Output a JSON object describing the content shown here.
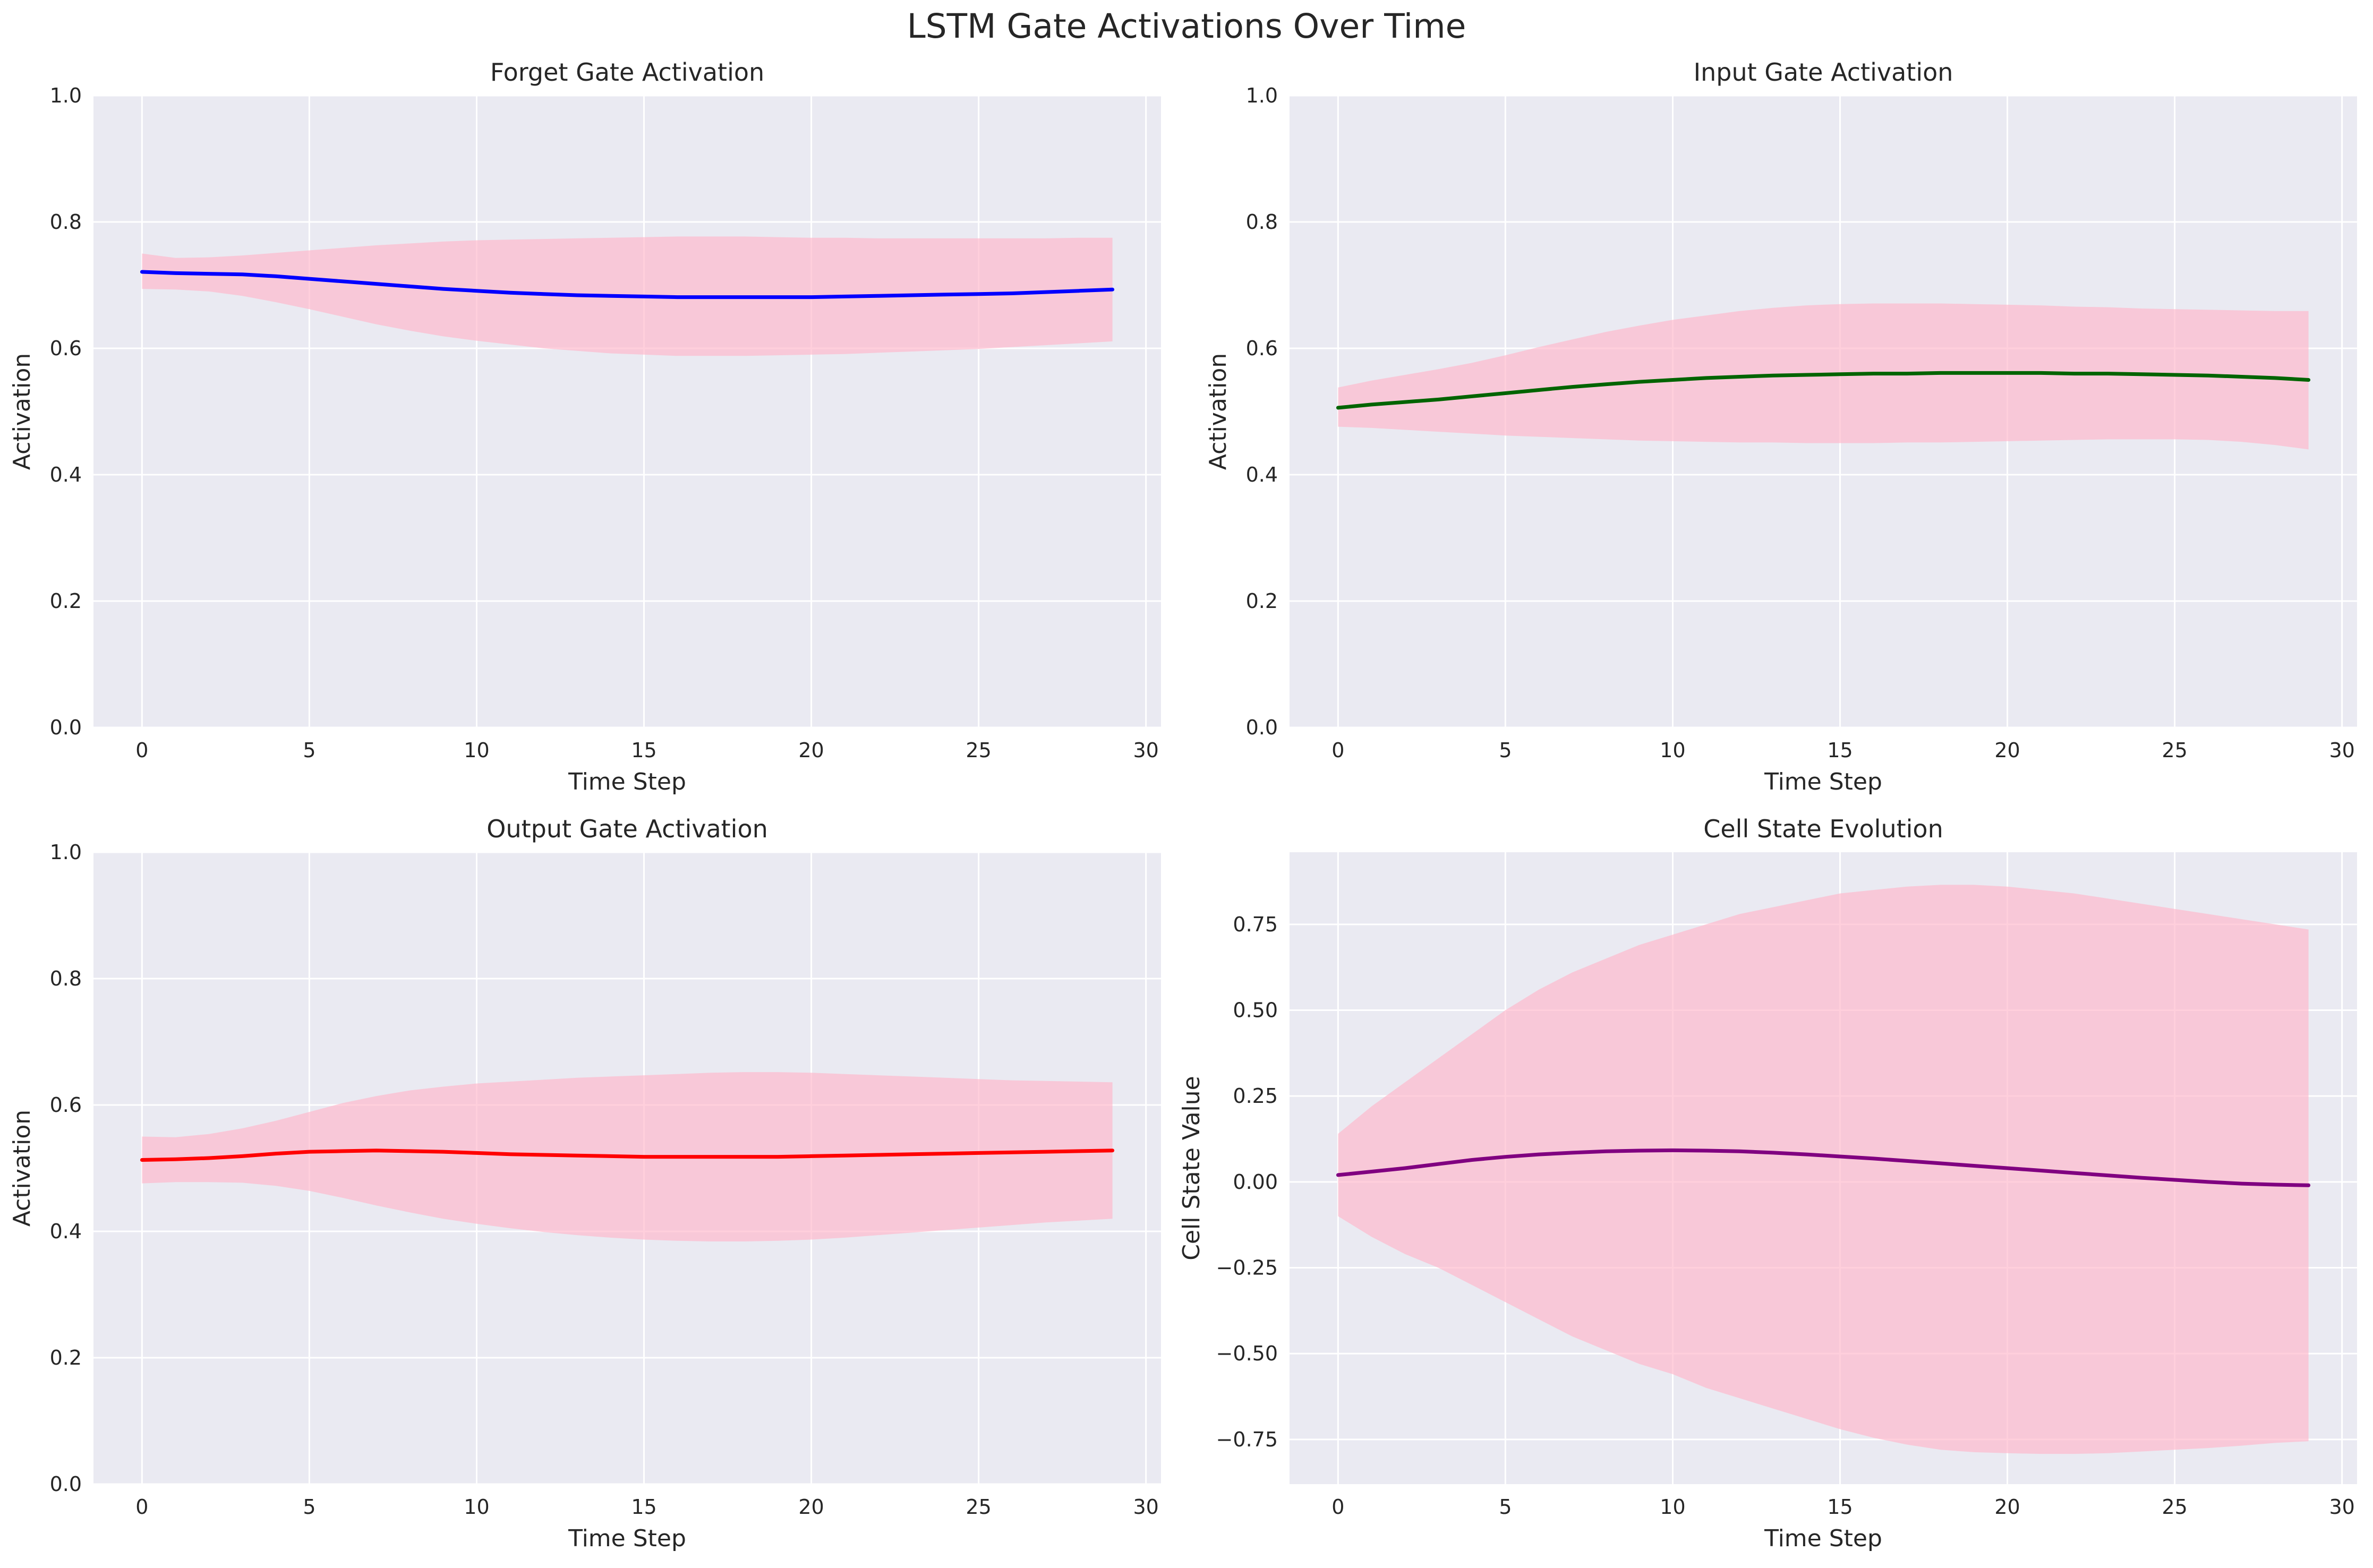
{
  "figure_title": "LSTM Gate Activations Over Time",
  "colors": {
    "axes_bg": "#eaeaf2",
    "grid": "#ffffff",
    "band": "#ffb6c9",
    "text": "#262626"
  },
  "chart_data": [
    {
      "type": "line",
      "title": "Forget Gate Activation",
      "xlabel": "Time Step",
      "ylabel": "Activation",
      "xlim": [
        -1.45,
        30.45
      ],
      "ylim": [
        0,
        1
      ],
      "xticks": [
        0,
        5,
        10,
        15,
        20,
        25,
        30
      ],
      "yticks": [
        0,
        0.2,
        0.4,
        0.6,
        0.8,
        1.0
      ],
      "ytick_labels": [
        "0.0",
        "0.2",
        "0.4",
        "0.6",
        "0.8",
        "1.0"
      ],
      "grid": true,
      "band_color": "#ffb6c9",
      "series": [
        {
          "color": "#0000ff",
          "x": [
            0,
            1,
            2,
            3,
            4,
            5,
            6,
            7,
            8,
            9,
            10,
            11,
            12,
            13,
            14,
            15,
            16,
            17,
            18,
            19,
            20,
            21,
            22,
            23,
            24,
            25,
            26,
            27,
            28,
            29
          ],
          "y": [
            0.721,
            0.719,
            0.718,
            0.717,
            0.714,
            0.71,
            0.706,
            0.702,
            0.698,
            0.694,
            0.691,
            0.688,
            0.686,
            0.684,
            0.683,
            0.682,
            0.681,
            0.681,
            0.681,
            0.681,
            0.681,
            0.682,
            0.683,
            0.684,
            0.685,
            0.686,
            0.687,
            0.689,
            0.691,
            0.693
          ],
          "lower": [
            0.694,
            0.693,
            0.69,
            0.683,
            0.673,
            0.662,
            0.65,
            0.638,
            0.628,
            0.619,
            0.612,
            0.606,
            0.6,
            0.596,
            0.592,
            0.59,
            0.588,
            0.588,
            0.588,
            0.589,
            0.59,
            0.591,
            0.593,
            0.595,
            0.597,
            0.599,
            0.602,
            0.605,
            0.608,
            0.611
          ],
          "upper": [
            0.75,
            0.743,
            0.744,
            0.747,
            0.751,
            0.755,
            0.759,
            0.763,
            0.766,
            0.769,
            0.771,
            0.772,
            0.773,
            0.774,
            0.775,
            0.776,
            0.777,
            0.777,
            0.777,
            0.776,
            0.775,
            0.775,
            0.774,
            0.774,
            0.774,
            0.774,
            0.774,
            0.774,
            0.775,
            0.775
          ]
        }
      ]
    },
    {
      "type": "line",
      "title": "Input Gate Activation",
      "xlabel": "Time Step",
      "ylabel": "Activation",
      "xlim": [
        -1.45,
        30.45
      ],
      "ylim": [
        0,
        1
      ],
      "xticks": [
        0,
        5,
        10,
        15,
        20,
        25,
        30
      ],
      "yticks": [
        0,
        0.2,
        0.4,
        0.6,
        0.8,
        1.0
      ],
      "ytick_labels": [
        "0.0",
        "0.2",
        "0.4",
        "0.6",
        "0.8",
        "1.0"
      ],
      "grid": true,
      "band_color": "#ffb6c9",
      "series": [
        {
          "color": "#006400",
          "x": [
            0,
            1,
            2,
            3,
            4,
            5,
            6,
            7,
            8,
            9,
            10,
            11,
            12,
            13,
            14,
            15,
            16,
            17,
            18,
            19,
            20,
            21,
            22,
            23,
            24,
            25,
            26,
            27,
            28,
            29
          ],
          "y": [
            0.506,
            0.511,
            0.515,
            0.519,
            0.524,
            0.529,
            0.534,
            0.539,
            0.543,
            0.547,
            0.55,
            0.553,
            0.555,
            0.557,
            0.558,
            0.559,
            0.56,
            0.56,
            0.561,
            0.561,
            0.561,
            0.561,
            0.56,
            0.56,
            0.559,
            0.558,
            0.557,
            0.555,
            0.553,
            0.55
          ],
          "lower": [
            0.476,
            0.474,
            0.471,
            0.468,
            0.465,
            0.462,
            0.46,
            0.458,
            0.456,
            0.454,
            0.453,
            0.452,
            0.451,
            0.451,
            0.45,
            0.45,
            0.45,
            0.451,
            0.451,
            0.452,
            0.453,
            0.454,
            0.455,
            0.456,
            0.456,
            0.456,
            0.455,
            0.452,
            0.447,
            0.44
          ],
          "upper": [
            0.538,
            0.549,
            0.558,
            0.567,
            0.577,
            0.589,
            0.602,
            0.614,
            0.626,
            0.636,
            0.645,
            0.652,
            0.659,
            0.664,
            0.668,
            0.67,
            0.671,
            0.671,
            0.671,
            0.67,
            0.669,
            0.668,
            0.666,
            0.665,
            0.663,
            0.662,
            0.661,
            0.66,
            0.659,
            0.659
          ]
        }
      ]
    },
    {
      "type": "line",
      "title": "Output Gate Activation",
      "xlabel": "Time Step",
      "ylabel": "Activation",
      "xlim": [
        -1.45,
        30.45
      ],
      "ylim": [
        0,
        1
      ],
      "xticks": [
        0,
        5,
        10,
        15,
        20,
        25,
        30
      ],
      "yticks": [
        0,
        0.2,
        0.4,
        0.6,
        0.8,
        1.0
      ],
      "ytick_labels": [
        "0.0",
        "0.2",
        "0.4",
        "0.6",
        "0.8",
        "1.0"
      ],
      "grid": true,
      "band_color": "#ffb6c9",
      "series": [
        {
          "color": "#ff0000",
          "x": [
            0,
            1,
            2,
            3,
            4,
            5,
            6,
            7,
            8,
            9,
            10,
            11,
            12,
            13,
            14,
            15,
            16,
            17,
            18,
            19,
            20,
            21,
            22,
            23,
            24,
            25,
            26,
            27,
            28,
            29
          ],
          "y": [
            0.513,
            0.514,
            0.516,
            0.519,
            0.523,
            0.526,
            0.527,
            0.528,
            0.527,
            0.526,
            0.524,
            0.522,
            0.521,
            0.52,
            0.519,
            0.518,
            0.518,
            0.518,
            0.518,
            0.518,
            0.519,
            0.52,
            0.521,
            0.522,
            0.523,
            0.524,
            0.525,
            0.526,
            0.527,
            0.528
          ],
          "lower": [
            0.476,
            0.478,
            0.478,
            0.477,
            0.472,
            0.464,
            0.453,
            0.441,
            0.43,
            0.42,
            0.412,
            0.405,
            0.399,
            0.394,
            0.39,
            0.387,
            0.385,
            0.384,
            0.384,
            0.385,
            0.387,
            0.39,
            0.394,
            0.398,
            0.402,
            0.406,
            0.41,
            0.414,
            0.417,
            0.42
          ],
          "upper": [
            0.55,
            0.549,
            0.554,
            0.563,
            0.575,
            0.589,
            0.603,
            0.614,
            0.623,
            0.629,
            0.634,
            0.637,
            0.64,
            0.643,
            0.645,
            0.647,
            0.649,
            0.651,
            0.652,
            0.652,
            0.651,
            0.649,
            0.647,
            0.645,
            0.643,
            0.641,
            0.639,
            0.638,
            0.637,
            0.636
          ]
        }
      ]
    },
    {
      "type": "line",
      "title": "Cell State Evolution",
      "xlabel": "Time Step",
      "ylabel": "Cell State Value",
      "xlim": [
        -1.45,
        30.45
      ],
      "ylim": [
        -0.88,
        0.96
      ],
      "xticks": [
        0,
        5,
        10,
        15,
        20,
        25,
        30
      ],
      "yticks": [
        -0.75,
        -0.5,
        -0.25,
        0,
        0.25,
        0.5,
        0.75
      ],
      "ytick_labels": [
        "−0.75",
        "−0.50",
        "−0.25",
        "0.00",
        "0.25",
        "0.50",
        "0.75"
      ],
      "grid": true,
      "band_color": "#ffb6c9",
      "series": [
        {
          "color": "#800080",
          "x": [
            0,
            1,
            2,
            3,
            4,
            5,
            6,
            7,
            8,
            9,
            10,
            11,
            12,
            13,
            14,
            15,
            16,
            17,
            18,
            19,
            20,
            21,
            22,
            23,
            24,
            25,
            26,
            27,
            28,
            29
          ],
          "y": [
            0.02,
            0.03,
            0.04,
            0.052,
            0.064,
            0.073,
            0.08,
            0.085,
            0.089,
            0.091,
            0.092,
            0.091,
            0.089,
            0.085,
            0.08,
            0.074,
            0.068,
            0.061,
            0.054,
            0.047,
            0.04,
            0.033,
            0.026,
            0.019,
            0.012,
            0.006,
            0.0,
            -0.005,
            -0.008,
            -0.01
          ],
          "lower": [
            -0.1,
            -0.16,
            -0.21,
            -0.25,
            -0.3,
            -0.35,
            -0.4,
            -0.45,
            -0.49,
            -0.53,
            -0.56,
            -0.6,
            -0.63,
            -0.66,
            -0.69,
            -0.72,
            -0.745,
            -0.765,
            -0.78,
            -0.787,
            -0.79,
            -0.792,
            -0.792,
            -0.79,
            -0.785,
            -0.78,
            -0.775,
            -0.768,
            -0.76,
            -0.755
          ],
          "upper": [
            0.14,
            0.22,
            0.29,
            0.36,
            0.43,
            0.5,
            0.56,
            0.61,
            0.65,
            0.69,
            0.72,
            0.75,
            0.78,
            0.8,
            0.82,
            0.84,
            0.85,
            0.86,
            0.865,
            0.865,
            0.86,
            0.85,
            0.84,
            0.825,
            0.81,
            0.795,
            0.78,
            0.765,
            0.75,
            0.735
          ]
        }
      ]
    }
  ]
}
